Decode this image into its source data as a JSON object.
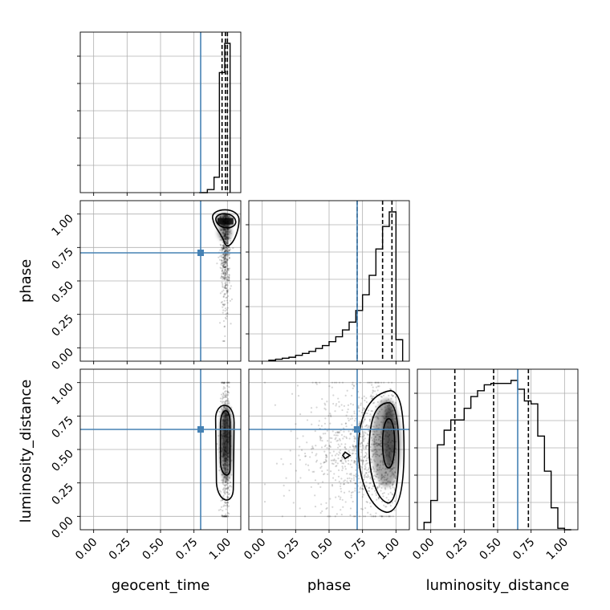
{
  "chart_data": {
    "type": "corner",
    "parameters": [
      "geocent_time",
      "phase",
      "luminosity_distance"
    ],
    "axis_range": [
      -0.1,
      1.1
    ],
    "ticks": [
      0.0,
      0.25,
      0.5,
      0.75,
      1.0
    ],
    "tick_labels": [
      "0.00",
      "0.25",
      "0.50",
      "0.75",
      "1.00"
    ],
    "grid": true,
    "colors": {
      "truth": "#4682b4",
      "histogram": "#000000",
      "scatter": "#808080"
    },
    "truths": {
      "geocent_time": 0.8,
      "phase": 0.71,
      "luminosity_distance": 0.65
    },
    "histograms": [
      {
        "parameter": "geocent_time",
        "bin_edges": [
          0.79,
          0.85,
          0.9,
          0.94,
          0.98,
          1.02
        ],
        "counts": [
          0,
          2,
          10,
          78,
          97
        ],
        "quantile_lines": [
          0.96,
          0.985,
          1.0
        ]
      },
      {
        "parameter": "phase",
        "bin_edges": [
          0.05,
          0.1,
          0.15,
          0.2,
          0.25,
          0.3,
          0.35,
          0.4,
          0.45,
          0.5,
          0.55,
          0.6,
          0.65,
          0.7,
          0.75,
          0.8,
          0.85,
          0.9,
          0.95,
          1.0,
          1.05
        ],
        "counts": [
          1,
          2,
          3,
          4,
          6,
          8,
          10,
          13,
          16,
          20,
          25,
          32,
          40,
          52,
          68,
          88,
          115,
          138,
          153,
          22
        ],
        "quantile_lines": [
          0.71,
          0.9,
          0.97
        ]
      },
      {
        "parameter": "luminosity_distance",
        "bin_edges": [
          -0.05,
          0.0,
          0.05,
          0.1,
          0.15,
          0.2,
          0.25,
          0.3,
          0.35,
          0.4,
          0.45,
          0.5,
          0.55,
          0.6,
          0.65,
          0.7,
          0.75,
          0.8,
          0.85,
          0.9,
          0.95,
          1.0,
          1.05
        ],
        "counts": [
          5,
          20,
          58,
          68,
          75,
          75,
          83,
          91,
          95,
          99,
          100,
          100,
          100,
          102,
          96,
          88,
          86,
          64,
          40,
          15,
          1,
          0
        ],
        "quantile_lines": [
          0.18,
          0.47,
          0.73
        ]
      }
    ],
    "scatter_panels": [
      {
        "x": "geocent_time",
        "y": "phase"
      },
      {
        "x": "geocent_time",
        "y": "luminosity_distance"
      },
      {
        "x": "phase",
        "y": "luminosity_distance"
      }
    ]
  }
}
